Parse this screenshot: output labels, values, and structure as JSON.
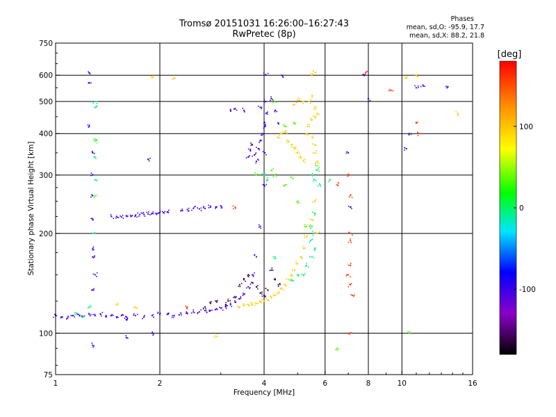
{
  "header": {
    "title_line1": "Tromsø 20151031 16:26:00–16:27:43",
    "title_line2": "RwPretec (8p)"
  },
  "phases_panel": {
    "heading": "Phases",
    "line_o": "mean, sd,O: -95.9, 17.7",
    "line_x": "mean, sd,X:  88.2, 21.8"
  },
  "chart_data": {
    "type": "scatter",
    "title": "Tromsø 20151031 16:26:00–16:27:43",
    "subtitle": "RwPretec (8p)",
    "xlabel": "Frequency [MHz]",
    "ylabel": "Stationary phase Virtual Height [km]",
    "x_scale": "log",
    "y_scale": "log",
    "xlim": [
      1,
      16
    ],
    "ylim": [
      75,
      750
    ],
    "x_ticks": [
      1,
      2,
      4,
      6,
      8,
      10,
      16
    ],
    "x_tick_labels": [
      "1",
      "2",
      "4",
      "6",
      "8",
      "10",
      "16"
    ],
    "y_ticks": [
      75,
      100,
      200,
      300,
      400,
      500,
      600,
      750
    ],
    "y_tick_labels": [
      "75",
      "100",
      "200",
      "300",
      "400",
      "500",
      "600",
      "750"
    ],
    "grid": true,
    "colorbar": {
      "label": "[deg]",
      "range": [
        -180,
        180
      ],
      "ticks": [
        100,
        0,
        -100
      ],
      "tick_labels": [
        "100",
        "0",
        "-100"
      ],
      "colormap": [
        "#000000",
        "#8a00c8",
        "#0000ff",
        "#00e6ff",
        "#00ff00",
        "#ffff00",
        "#ff8c00",
        "#ff0000"
      ]
    },
    "series": [
      {
        "phase": -100,
        "points": [
          [
            1.0,
            113
          ],
          [
            1.04,
            112
          ],
          [
            1.08,
            111
          ],
          [
            1.12,
            113
          ],
          [
            1.16,
            114
          ],
          [
            1.2,
            112
          ],
          [
            1.25,
            114
          ],
          [
            1.3,
            113
          ],
          [
            1.35,
            114
          ],
          [
            1.4,
            112
          ],
          [
            1.45,
            113
          ],
          [
            1.5,
            112
          ],
          [
            1.55,
            113
          ],
          [
            1.6,
            112
          ],
          [
            1.7,
            113
          ],
          [
            1.8,
            112
          ],
          [
            1.9,
            113
          ],
          [
            2.0,
            114
          ],
          [
            2.1,
            114
          ],
          [
            2.2,
            113
          ],
          [
            2.3,
            115
          ],
          [
            2.4,
            115
          ],
          [
            2.5,
            116
          ],
          [
            2.6,
            116
          ],
          [
            2.7,
            117
          ],
          [
            2.8,
            117
          ],
          [
            2.9,
            118
          ],
          [
            3.0,
            119
          ],
          [
            3.1,
            120
          ],
          [
            3.2,
            122
          ],
          [
            3.3,
            124
          ],
          [
            3.4,
            127
          ],
          [
            3.5,
            131
          ],
          [
            3.6,
            138
          ],
          [
            3.7,
            150
          ],
          [
            3.8,
            170
          ],
          [
            3.9,
            210
          ],
          [
            4.0,
            280
          ],
          [
            4.02,
            350
          ],
          [
            4.03,
            420
          ],
          [
            4.04,
            500
          ],
          [
            4.05,
            600
          ],
          [
            4.2,
            510
          ],
          [
            4.3,
            470
          ],
          [
            4.4,
            430
          ],
          [
            4.5,
            600
          ]
        ]
      },
      {
        "phase": -100,
        "points": [
          [
            1.45,
            225
          ],
          [
            1.5,
            225
          ],
          [
            1.55,
            224
          ],
          [
            1.6,
            226
          ],
          [
            1.65,
            225
          ],
          [
            1.7,
            226
          ],
          [
            1.75,
            228
          ],
          [
            1.8,
            228
          ],
          [
            1.85,
            229
          ],
          [
            1.9,
            230
          ],
          [
            1.95,
            230
          ],
          [
            2.0,
            231
          ],
          [
            2.05,
            231
          ],
          [
            2.1,
            232
          ],
          [
            2.3,
            234
          ],
          [
            2.4,
            236
          ],
          [
            2.5,
            238
          ],
          [
            2.6,
            237
          ],
          [
            2.7,
            238
          ],
          [
            2.8,
            240
          ],
          [
            2.9,
            240
          ],
          [
            3.0,
            242
          ]
        ]
      },
      {
        "phase": -100,
        "points": [
          [
            3.6,
            340
          ],
          [
            3.65,
            355
          ],
          [
            3.7,
            370
          ],
          [
            3.75,
            345
          ],
          [
            3.8,
            330
          ],
          [
            3.85,
            360
          ],
          [
            3.9,
            380
          ],
          [
            3.95,
            400
          ],
          [
            4.0,
            430
          ],
          [
            4.05,
            460
          ],
          [
            3.9,
            480
          ],
          [
            3.5,
            470
          ],
          [
            3.3,
            475
          ],
          [
            3.2,
            470
          ]
        ]
      },
      {
        "phase": -100,
        "points": [
          [
            1.25,
            610
          ],
          [
            1.25,
            570
          ],
          [
            1.25,
            420
          ],
          [
            1.28,
            350
          ],
          [
            1.28,
            300
          ],
          [
            1.28,
            260
          ],
          [
            1.28,
            220
          ],
          [
            1.28,
            180
          ],
          [
            1.28,
            170
          ],
          [
            1.3,
            150
          ],
          [
            1.28,
            135
          ],
          [
            1.28,
            92
          ],
          [
            1.6,
            110
          ],
          [
            1.9,
            100
          ],
          [
            1.6,
            97
          ],
          [
            1.85,
            335
          ],
          [
            7.0,
            350
          ],
          [
            7.1,
            240
          ],
          [
            7.8,
            600
          ],
          [
            8.0,
            510
          ],
          [
            10.5,
            400
          ],
          [
            10.3,
            360
          ],
          [
            13.5,
            550
          ],
          [
            11.5,
            560
          ],
          [
            11.0,
            550
          ]
        ]
      },
      {
        "phase": 100,
        "points": [
          [
            4.4,
            390
          ],
          [
            4.5,
            400
          ],
          [
            4.6,
            405
          ],
          [
            4.7,
            380
          ],
          [
            4.8,
            370
          ],
          [
            4.9,
            360
          ],
          [
            5.0,
            350
          ],
          [
            5.1,
            340
          ],
          [
            5.2,
            330
          ],
          [
            5.3,
            400
          ],
          [
            5.4,
            420
          ],
          [
            5.5,
            440
          ],
          [
            5.6,
            450
          ],
          [
            5.5,
            520
          ],
          [
            5.6,
            480
          ],
          [
            5.7,
            460
          ],
          [
            5.5,
            390
          ],
          [
            5.6,
            370
          ],
          [
            5.6,
            350
          ],
          [
            5.7,
            330
          ]
        ]
      },
      {
        "phase": 100,
        "points": [
          [
            3.4,
            120
          ],
          [
            3.5,
            121
          ],
          [
            3.6,
            122
          ],
          [
            3.7,
            122
          ],
          [
            3.8,
            123
          ],
          [
            3.9,
            124
          ],
          [
            4.0,
            125
          ],
          [
            4.1,
            126
          ],
          [
            4.2,
            128
          ],
          [
            4.3,
            130
          ],
          [
            4.4,
            133
          ],
          [
            4.5,
            136
          ],
          [
            4.6,
            140
          ],
          [
            4.7,
            145
          ],
          [
            4.8,
            150
          ],
          [
            4.9,
            155
          ],
          [
            5.0,
            162
          ],
          [
            5.1,
            170
          ],
          [
            5.2,
            180
          ],
          [
            5.3,
            195
          ],
          [
            5.4,
            210
          ],
          [
            5.5,
            220
          ],
          [
            5.6,
            230
          ],
          [
            5.6,
            250
          ],
          [
            5.7,
            200
          ]
        ]
      },
      {
        "phase": 100,
        "points": [
          [
            2.2,
            590
          ],
          [
            1.9,
            590
          ],
          [
            4.9,
            490
          ],
          [
            5.0,
            505
          ],
          [
            5.2,
            500
          ],
          [
            5.4,
            500
          ],
          [
            5.5,
            600
          ],
          [
            5.6,
            610
          ],
          [
            1.7,
            120
          ],
          [
            1.5,
            122
          ],
          [
            2.9,
            98
          ],
          [
            10.3,
            590
          ],
          [
            14.5,
            460
          ],
          [
            11.0,
            600
          ]
        ]
      },
      {
        "phase": 0,
        "points": [
          [
            5.5,
            300
          ],
          [
            5.6,
            290
          ],
          [
            5.7,
            310
          ],
          [
            5.8,
            280
          ],
          [
            5.6,
            230
          ],
          [
            5.5,
            210
          ],
          [
            5.45,
            190
          ],
          [
            5.55,
            200
          ],
          [
            5.6,
            180
          ],
          [
            5.5,
            170
          ],
          [
            5.3,
            160
          ],
          [
            5.0,
            150
          ],
          [
            4.8,
            145
          ],
          [
            4.3,
            170
          ],
          [
            4.1,
            290
          ],
          [
            4.0,
            300
          ],
          [
            5.2,
            150
          ],
          [
            1.3,
            500
          ],
          [
            1.3,
            480
          ],
          [
            1.3,
            380
          ],
          [
            1.3,
            340
          ],
          [
            1.3,
            290
          ],
          [
            1.3,
            200
          ],
          [
            1.25,
            120
          ],
          [
            1.2,
            112
          ],
          [
            1.15,
            115
          ],
          [
            6.2,
            290
          ]
        ]
      },
      {
        "phase": -160,
        "points": [
          [
            3.1,
            122
          ],
          [
            3.15,
            125
          ],
          [
            3.3,
            128
          ],
          [
            3.4,
            140
          ],
          [
            3.5,
            145
          ],
          [
            3.6,
            150
          ],
          [
            3.7,
            142
          ],
          [
            3.8,
            138
          ],
          [
            3.9,
            132
          ],
          [
            4.0,
            130
          ],
          [
            4.1,
            135
          ],
          [
            4.2,
            155
          ],
          [
            4.3,
            145
          ],
          [
            4.4,
            140
          ],
          [
            2.7,
            120
          ],
          [
            2.8,
            123
          ],
          [
            2.9,
            125
          ]
        ]
      },
      {
        "phase": 160,
        "points": [
          [
            7.85,
            610
          ],
          [
            7.0,
            300
          ],
          [
            7.1,
            260
          ],
          [
            7.1,
            200
          ],
          [
            7.1,
            190
          ],
          [
            7.1,
            160
          ],
          [
            7.1,
            140
          ],
          [
            7.2,
            130
          ],
          [
            7.0,
            150
          ],
          [
            7.1,
            100
          ],
          [
            9.3,
            540
          ],
          [
            6.5,
            280
          ],
          [
            2.4,
            120
          ],
          [
            3.3,
            240
          ],
          [
            11.0,
            430
          ],
          [
            11.2,
            400
          ]
        ]
      },
      {
        "phase": 40,
        "points": [
          [
            4.2,
            310
          ],
          [
            4.3,
            300
          ],
          [
            4.6,
            280
          ],
          [
            4.8,
            295
          ],
          [
            5.7,
            320
          ],
          [
            5.0,
            250
          ],
          [
            1.3,
            380
          ],
          [
            1.3,
            260
          ],
          [
            3.8,
            300
          ],
          [
            4.3,
            500
          ],
          [
            4.6,
            420
          ],
          [
            4.9,
            430
          ],
          [
            5.3,
            210
          ],
          [
            10.5,
            100
          ],
          [
            6.5,
            90
          ]
        ]
      }
    ]
  }
}
